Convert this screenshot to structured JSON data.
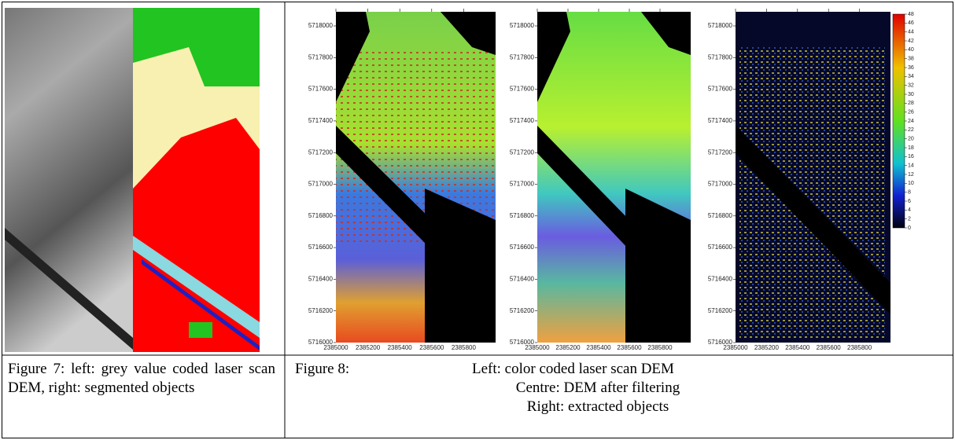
{
  "figure7": {
    "caption": "Figure 7: left: grey value coded laser scan DEM, right: segmented objects"
  },
  "figure8": {
    "caption": {
      "label": "Figure 8:",
      "lines": [
        "Left: color coded laser scan DEM",
        "Centre: DEM after filtering",
        "Right: extracted objects"
      ]
    },
    "yticks": [
      5716000,
      5716200,
      5716400,
      5716600,
      5716800,
      5717000,
      5717200,
      5717400,
      5717600,
      5717800,
      5718000
    ],
    "xticks": [
      2385000,
      2385200,
      2385400,
      2385600,
      2385800
    ],
    "colorbar_ticks": [
      0,
      2,
      4,
      6,
      8,
      10,
      12,
      14,
      16,
      18,
      20,
      22,
      24,
      26,
      28,
      30,
      32,
      34,
      36,
      38,
      40,
      42,
      44,
      46,
      48
    ]
  }
}
